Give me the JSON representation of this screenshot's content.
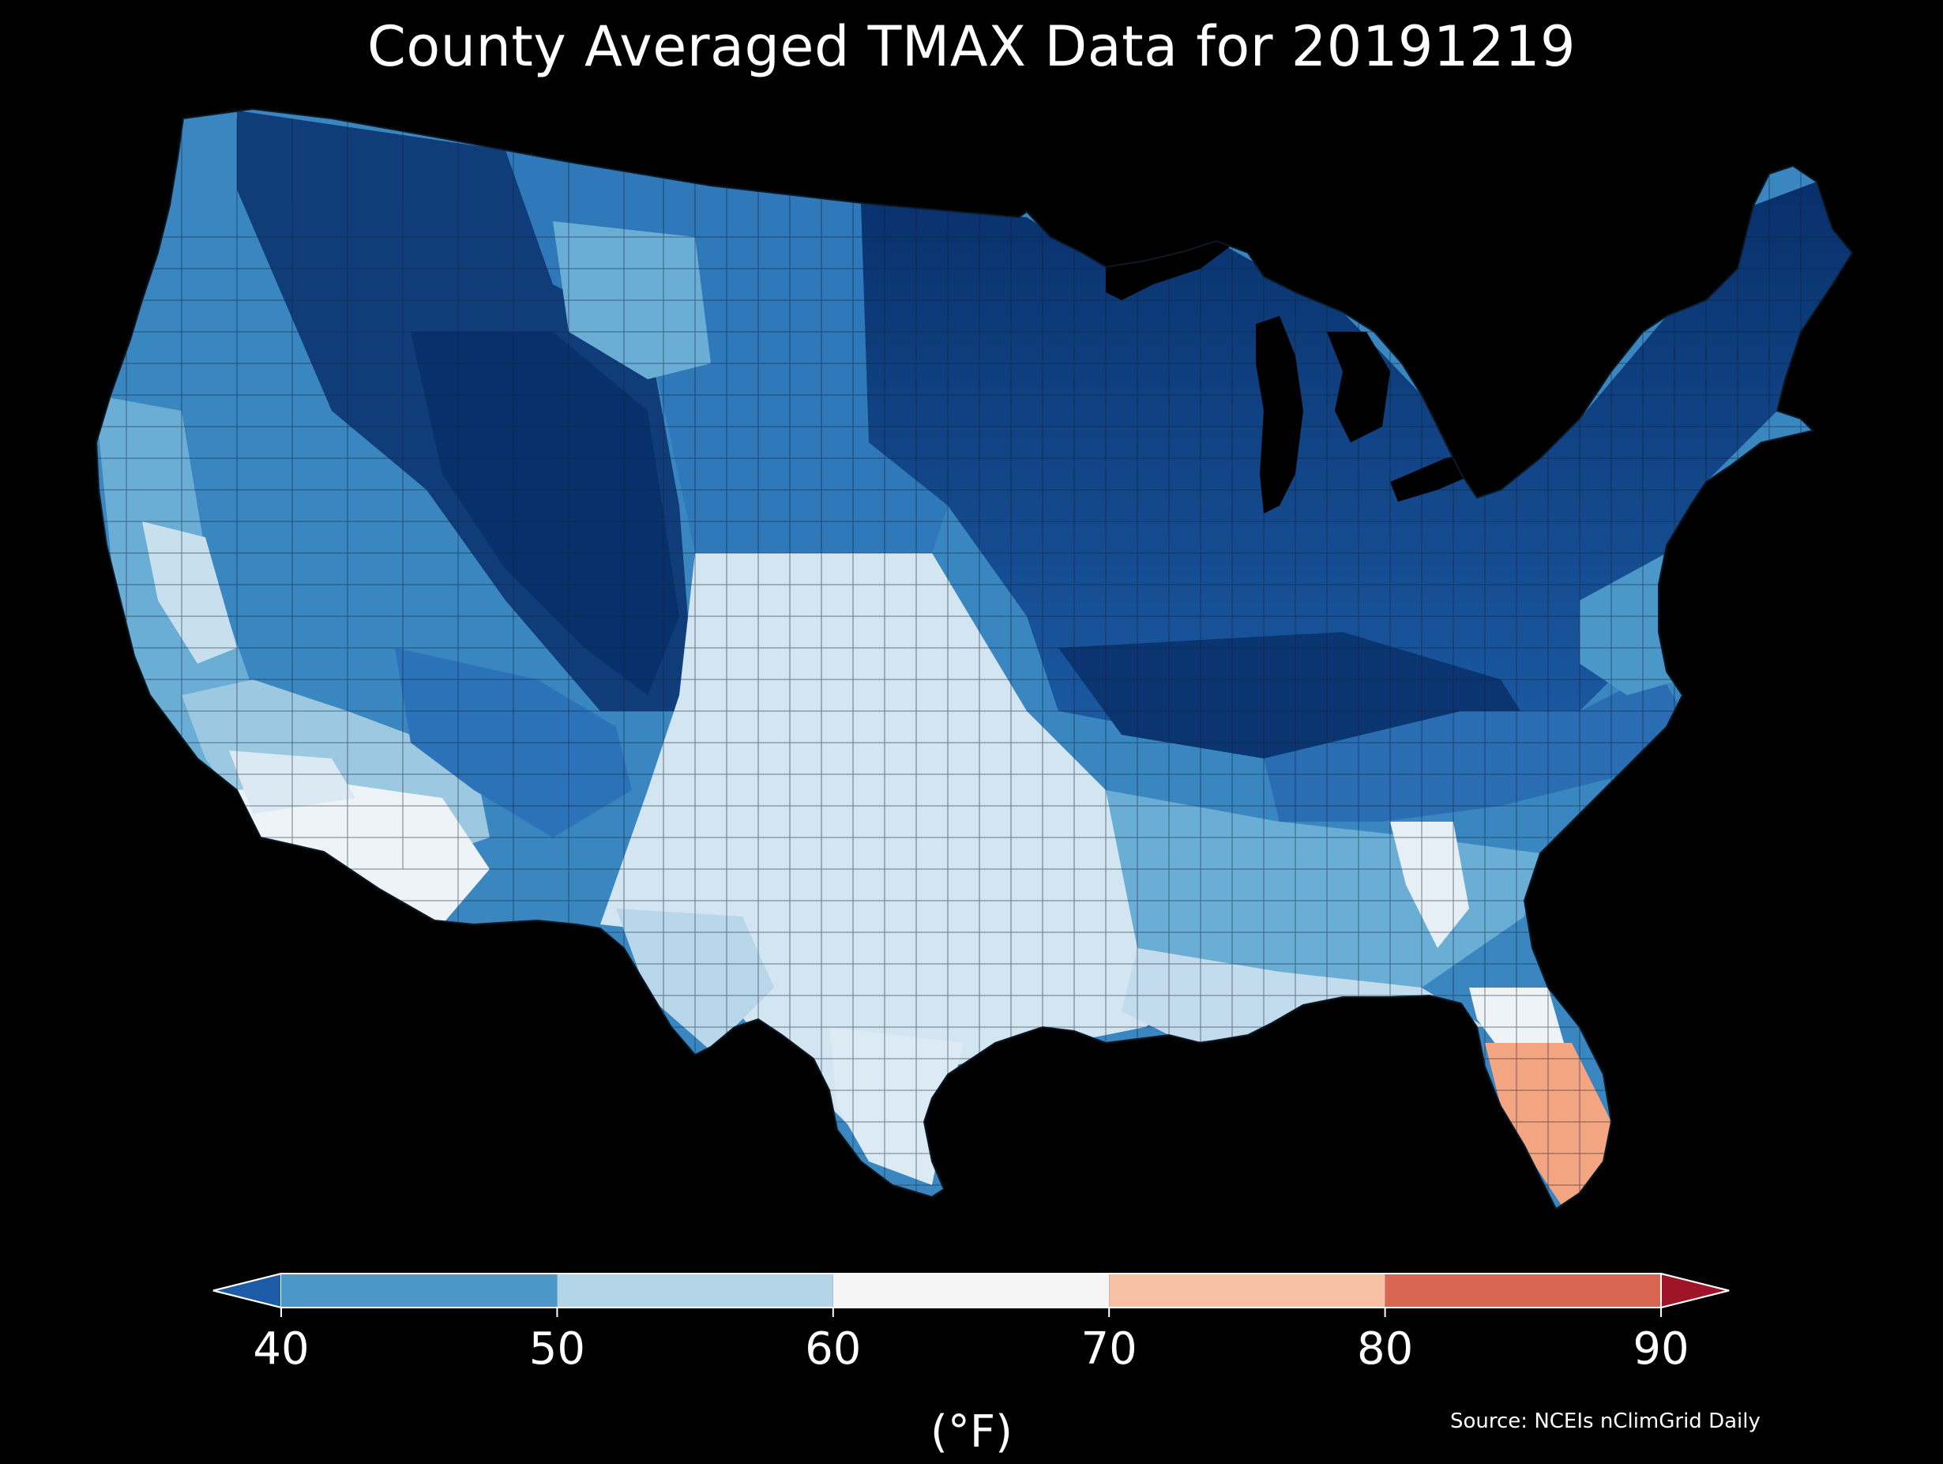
{
  "title": "County Averaged TMAX Data for 20191219",
  "colorbar": {
    "unit_label": "(°F)",
    "ticks": [
      "40",
      "50",
      "60",
      "70",
      "80",
      "90"
    ],
    "bins": [
      {
        "range": "<40",
        "color": "#1c5ca6"
      },
      {
        "range": "40-50",
        "color": "#4a97c8"
      },
      {
        "range": "50-60",
        "color": "#b4d5e8"
      },
      {
        "range": "60-70",
        "color": "#f5f5f5"
      },
      {
        "range": "70-80",
        "color": "#f8c1a6"
      },
      {
        "range": "80-90",
        "color": "#d96652"
      },
      {
        "range": ">90",
        "color": "#a01428"
      }
    ],
    "extend": "both"
  },
  "source": "Source: NCEIs nClimGrid Daily",
  "map": {
    "region": "Contiguous United States",
    "variable": "TMAX",
    "background": "#000000",
    "border_color": "#1a2a3a"
  }
}
